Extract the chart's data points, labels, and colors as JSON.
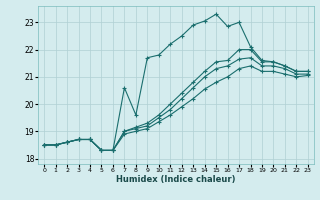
{
  "xlabel": "Humidex (Indice chaleur)",
  "background_color": "#d4ecee",
  "grid_color": "#b0d0d4",
  "line_color": "#1a6e6e",
  "xlim": [
    -0.5,
    23.5
  ],
  "ylim": [
    17.8,
    23.6
  ],
  "yticks": [
    18,
    19,
    20,
    21,
    22,
    23
  ],
  "xticks": [
    0,
    1,
    2,
    3,
    4,
    5,
    6,
    7,
    8,
    9,
    10,
    11,
    12,
    13,
    14,
    15,
    16,
    17,
    18,
    19,
    20,
    21,
    22,
    23
  ],
  "lines": [
    {
      "x": [
        0,
        1,
        2,
        3,
        4,
        5,
        6,
        7,
        8,
        9,
        10,
        11,
        12,
        13,
        14,
        15,
        16,
        17,
        18,
        19,
        20,
        21,
        22,
        23
      ],
      "y": [
        18.5,
        18.5,
        18.6,
        18.7,
        18.7,
        18.3,
        18.3,
        20.6,
        19.6,
        21.7,
        21.8,
        22.2,
        22.5,
        22.9,
        23.05,
        23.3,
        22.85,
        23.0,
        22.1,
        21.6,
        21.55,
        21.4,
        21.2,
        21.2
      ]
    },
    {
      "x": [
        0,
        1,
        2,
        3,
        4,
        5,
        6,
        7,
        8,
        9,
        10,
        11,
        12,
        13,
        14,
        15,
        16,
        17,
        18,
        19,
        20,
        21,
        22,
        23
      ],
      "y": [
        18.5,
        18.5,
        18.6,
        18.7,
        18.7,
        18.3,
        18.3,
        19.0,
        19.15,
        19.3,
        19.6,
        20.0,
        20.4,
        20.8,
        21.2,
        21.55,
        21.6,
        22.0,
        22.0,
        21.55,
        21.55,
        21.4,
        21.2,
        21.2
      ]
    },
    {
      "x": [
        0,
        1,
        2,
        3,
        4,
        5,
        6,
        7,
        8,
        9,
        10,
        11,
        12,
        13,
        14,
        15,
        16,
        17,
        18,
        19,
        20,
        21,
        22,
        23
      ],
      "y": [
        18.5,
        18.5,
        18.6,
        18.7,
        18.7,
        18.3,
        18.3,
        19.0,
        19.1,
        19.2,
        19.5,
        19.8,
        20.2,
        20.6,
        21.0,
        21.3,
        21.4,
        21.65,
        21.7,
        21.4,
        21.4,
        21.3,
        21.1,
        21.1
      ]
    },
    {
      "x": [
        0,
        1,
        2,
        3,
        4,
        5,
        6,
        7,
        8,
        9,
        10,
        11,
        12,
        13,
        14,
        15,
        16,
        17,
        18,
        19,
        20,
        21,
        22,
        23
      ],
      "y": [
        18.5,
        18.5,
        18.6,
        18.7,
        18.7,
        18.3,
        18.3,
        18.9,
        19.0,
        19.1,
        19.35,
        19.6,
        19.9,
        20.2,
        20.55,
        20.8,
        21.0,
        21.3,
        21.4,
        21.2,
        21.2,
        21.1,
        21.0,
        21.05
      ]
    }
  ]
}
